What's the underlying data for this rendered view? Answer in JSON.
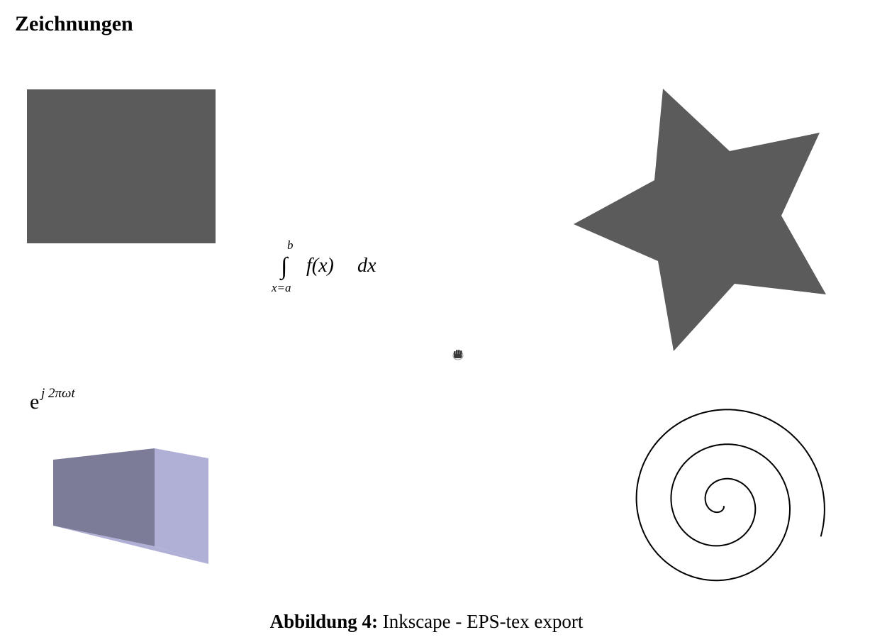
{
  "section": {
    "title": "Zeichnungen"
  },
  "formula_integral": {
    "symbol": "∫",
    "upper_limit": "b",
    "lower_limit": "x=a",
    "integrand": "f(x)",
    "differential": "dx"
  },
  "formula_exponential": {
    "base": "e",
    "exponent": "j 2πωt"
  },
  "icons": {
    "cursor": "hand-cursor-icon"
  },
  "colors": {
    "shape_fill": "#5b5b5b",
    "box_front": "#7c7b98",
    "box_side": "#b0b0d6",
    "spiral_stroke": "#000000"
  },
  "caption": {
    "label": "Abbildung 4:",
    "text": "Inkscape - EPS-tex export"
  }
}
